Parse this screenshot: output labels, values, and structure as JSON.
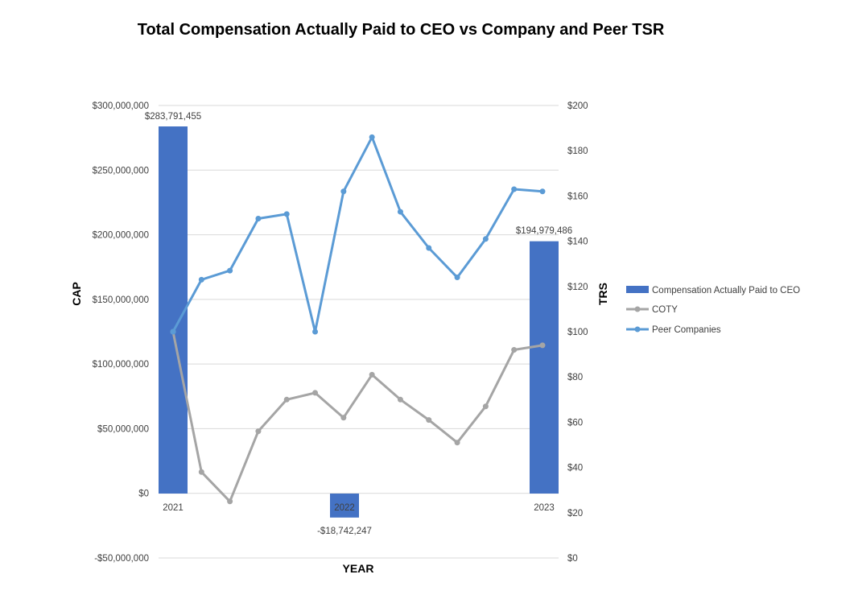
{
  "chart_data": {
    "type": "combo-bar-line",
    "title": "Total Compensation Actually Paid to CEO vs Company and Peer TSR",
    "xlabel": "YEAR",
    "ylabel_left": "CAP",
    "ylabel_right": "TRS",
    "categories": [
      "2021",
      "2022",
      "2023"
    ],
    "left_axis": {
      "range": [
        -50000000,
        300000000
      ],
      "ticks": [
        -50000000,
        0,
        50000000,
        100000000,
        150000000,
        200000000,
        250000000,
        300000000
      ],
      "tick_labels": [
        "-$50,000,000",
        "$0",
        "$50,000,000",
        "$100,000,000",
        "$150,000,000",
        "$200,000,000",
        "$250,000,000",
        "$300,000,000"
      ]
    },
    "right_axis": {
      "range": [
        0,
        200
      ],
      "ticks": [
        0,
        20,
        40,
        60,
        80,
        100,
        120,
        140,
        160,
        180,
        200
      ],
      "tick_labels": [
        "$0",
        "$20",
        "$40",
        "$60",
        "$80",
        "$100",
        "$120",
        "$140",
        "$160",
        "$180",
        "$200"
      ]
    },
    "bars": {
      "name": "Compensation Actually Paid to CEO",
      "color": "#4472c4",
      "values": [
        283791455,
        -18742247,
        194979486
      ],
      "labels": [
        "$283,791,455",
        "-$18,742,247",
        "$194,979,486"
      ]
    },
    "lines": [
      {
        "name": "COTY",
        "color": "#a5a5a5",
        "values": [
          100,
          38,
          25,
          56,
          70,
          73,
          62,
          81,
          70,
          61,
          51,
          67,
          92,
          94
        ]
      },
      {
        "name": "Peer Companies",
        "color": "#5b9bd5",
        "values": [
          100,
          123,
          127,
          150,
          152,
          100,
          162,
          186,
          153,
          137,
          124,
          141,
          163,
          162
        ]
      }
    ],
    "legend_position": "right",
    "grid": true
  }
}
